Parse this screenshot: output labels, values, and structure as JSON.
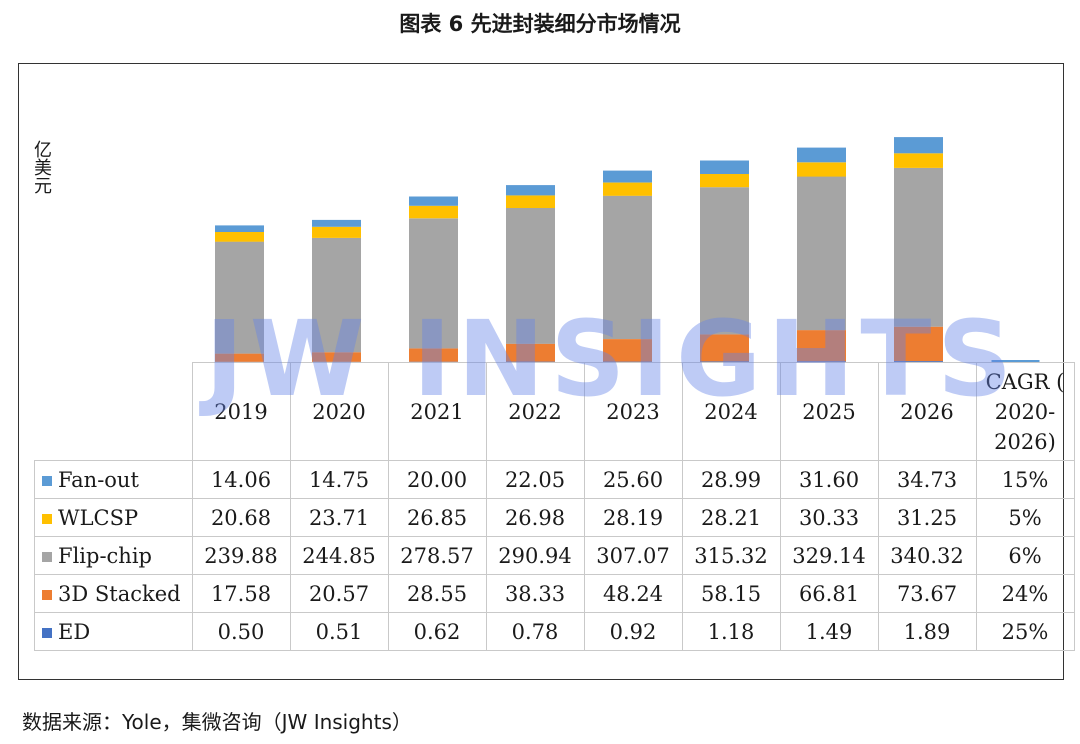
{
  "title": "图表 6 先进封装细分市场情况",
  "watermark": "JW INSIGHTS",
  "source": "数据来源：Yole，集微咨询（JW Insights）",
  "chart_data": {
    "type": "bar",
    "stacked": true,
    "ylabel": "亿美元",
    "categories": [
      "2019",
      "2020",
      "2021",
      "2022",
      "2023",
      "2024",
      "2025",
      "2026"
    ],
    "series": [
      {
        "name": "Fan-out",
        "color": "#5B9BD5",
        "values": [
          14.06,
          14.75,
          20.0,
          22.05,
          25.6,
          28.99,
          31.6,
          34.73
        ],
        "cagr": "15%"
      },
      {
        "name": "WLCSP",
        "color": "#FFC000",
        "values": [
          20.68,
          23.71,
          26.85,
          26.98,
          28.19,
          28.21,
          30.33,
          31.25
        ],
        "cagr": "5%"
      },
      {
        "name": "Flip-chip",
        "color": "#A5A5A5",
        "values": [
          239.88,
          244.85,
          278.57,
          290.94,
          307.07,
          315.32,
          329.14,
          340.32
        ],
        "cagr": "6%"
      },
      {
        "name": "3D Stacked",
        "color": "#ED7D31",
        "values": [
          17.58,
          20.57,
          28.55,
          38.33,
          48.24,
          58.15,
          66.81,
          73.67
        ],
        "cagr": "24%"
      },
      {
        "name": "ED",
        "color": "#4472C4",
        "values": [
          0.5,
          0.51,
          0.62,
          0.78,
          0.92,
          1.18,
          1.49,
          1.89
        ],
        "cagr": "25%"
      }
    ],
    "table_values": [
      [
        "14.06",
        "14.75",
        "20.00",
        "22.05",
        "25.60",
        "28.99",
        "31.60",
        "34.73"
      ],
      [
        "20.68",
        "23.71",
        "26.85",
        "26.98",
        "28.19",
        "28.21",
        "30.33",
        "31.25"
      ],
      [
        "239.88",
        "244.85",
        "278.57",
        "290.94",
        "307.07",
        "315.32",
        "329.14",
        "340.32"
      ],
      [
        "17.58",
        "20.57",
        "28.55",
        "38.33",
        "48.24",
        "58.15",
        "66.81",
        "73.67"
      ],
      [
        "0.50",
        "0.51",
        "0.62",
        "0.78",
        "0.92",
        "1.18",
        "1.49",
        "1.89"
      ]
    ],
    "cagr_header": [
      "CAGR (",
      "2020-",
      "2026)"
    ],
    "legend": "table",
    "grid": false
  }
}
